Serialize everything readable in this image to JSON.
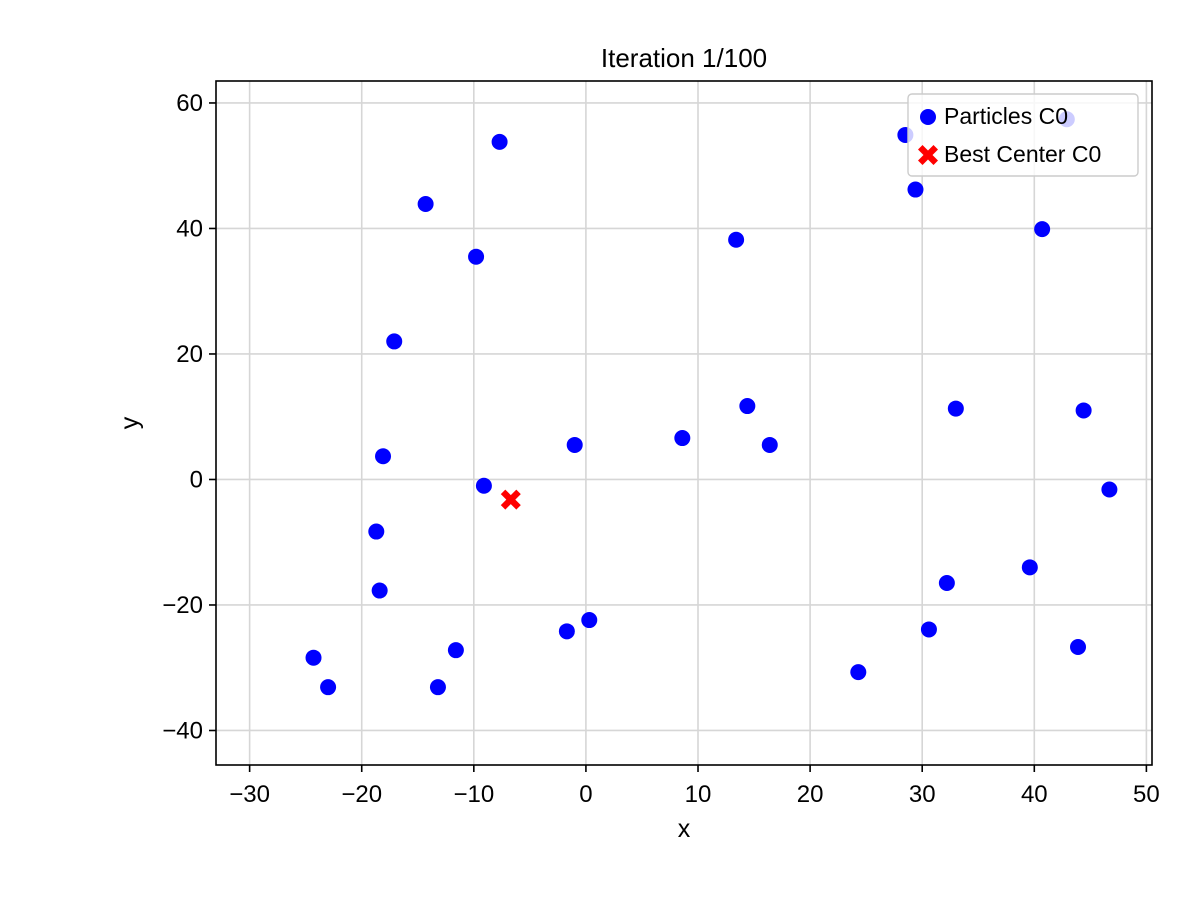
{
  "chart_data": {
    "type": "scatter",
    "title": "Iteration 1/100",
    "xlabel": "x",
    "ylabel": "y",
    "xlim": [
      -33,
      50.5
    ],
    "ylim": [
      -45.5,
      63.5
    ],
    "xticks": [
      -30,
      -20,
      -10,
      0,
      10,
      20,
      30,
      40,
      50
    ],
    "yticks": [
      -40,
      -20,
      0,
      20,
      40,
      60
    ],
    "xtick_labels": [
      "−30",
      "−20",
      "−10",
      "0",
      "10",
      "20",
      "30",
      "40",
      "50"
    ],
    "ytick_labels": [
      "−40",
      "−20",
      "0",
      "20",
      "40",
      "60"
    ],
    "grid": true,
    "legend_position": "top-right",
    "series": [
      {
        "name": "Particles C0",
        "marker": "circle",
        "color": "#0000ff",
        "points": [
          [
            -7.7,
            53.8
          ],
          [
            -14.3,
            43.9
          ],
          [
            -9.8,
            35.5
          ],
          [
            -17.1,
            22.0
          ],
          [
            -18.1,
            3.7
          ],
          [
            -9.1,
            -1.0
          ],
          [
            -1.0,
            5.5
          ],
          [
            8.6,
            6.6
          ],
          [
            13.4,
            38.2
          ],
          [
            14.4,
            11.7
          ],
          [
            16.4,
            5.5
          ],
          [
            28.5,
            54.9
          ],
          [
            29.4,
            46.2
          ],
          [
            33.0,
            11.3
          ],
          [
            40.7,
            39.9
          ],
          [
            42.9,
            57.4
          ],
          [
            44.4,
            11.0
          ],
          [
            46.7,
            -1.6
          ],
          [
            39.6,
            -14.0
          ],
          [
            32.2,
            -16.5
          ],
          [
            30.6,
            -23.9
          ],
          [
            43.9,
            -26.7
          ],
          [
            24.3,
            -30.7
          ],
          [
            0.3,
            -22.4
          ],
          [
            -1.7,
            -24.2
          ],
          [
            -11.6,
            -27.2
          ],
          [
            -13.2,
            -33.1
          ],
          [
            -18.4,
            -17.7
          ],
          [
            -18.7,
            -8.3
          ],
          [
            -24.3,
            -28.4
          ],
          [
            -23.0,
            -33.1
          ]
        ]
      },
      {
        "name": "Best Center C0",
        "marker": "x-filled",
        "color": "#ff0000",
        "points": [
          [
            -6.7,
            -3.2
          ]
        ]
      }
    ]
  }
}
